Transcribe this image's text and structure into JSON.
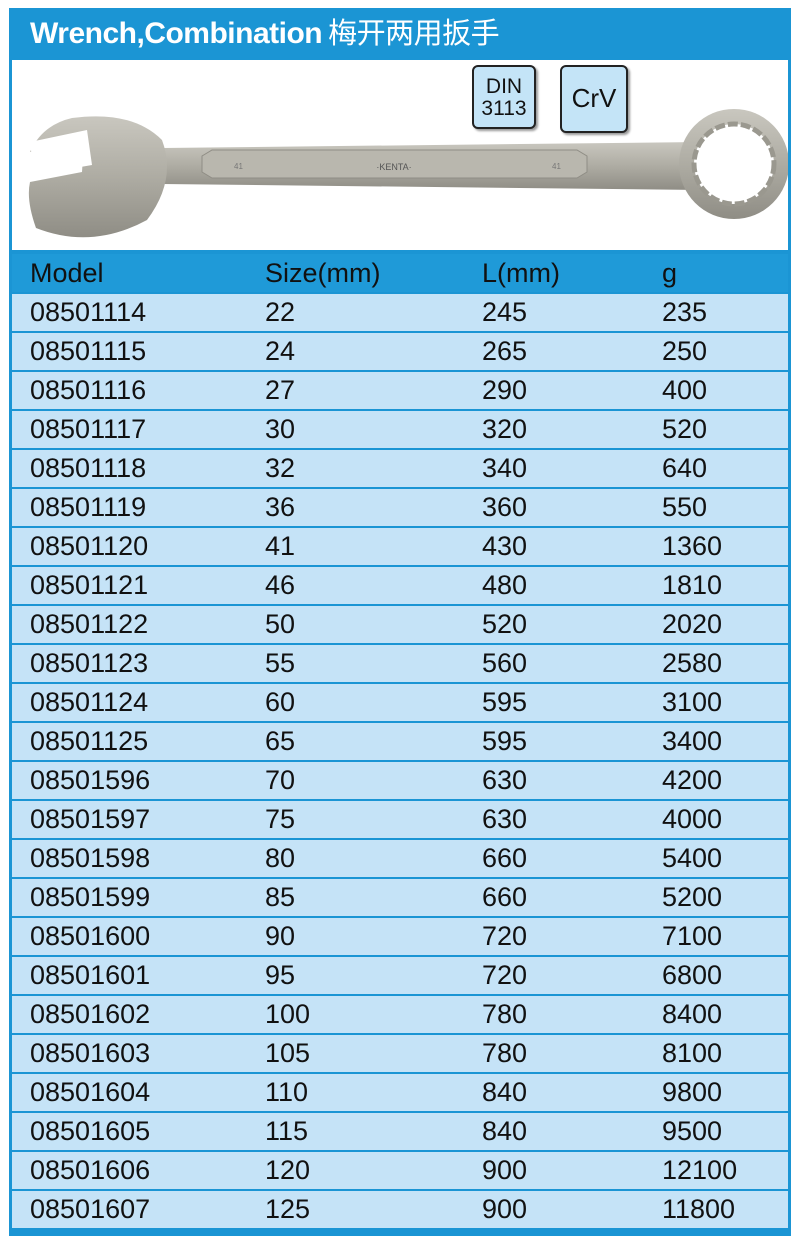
{
  "title": {
    "en": "Wrench,Combination",
    "cn": "梅开两用扳手"
  },
  "badges": {
    "din_line1": "DIN",
    "din_line2": "3113",
    "material": "CrV"
  },
  "wrench_marking": {
    "brand": "·KENTA·",
    "size_mark": "41"
  },
  "colors": {
    "frame": "#1b95d4",
    "row": "#c5e3f7",
    "badge": "#c4e4f7"
  },
  "table": {
    "headers": [
      "Model",
      "Size(mm)",
      "L(mm)",
      "g"
    ],
    "rows": [
      [
        "08501114",
        "22",
        "245",
        "235"
      ],
      [
        "08501115",
        "24",
        "265",
        "250"
      ],
      [
        "08501116",
        "27",
        "290",
        "400"
      ],
      [
        "08501117",
        "30",
        "320",
        "520"
      ],
      [
        "08501118",
        "32",
        "340",
        "640"
      ],
      [
        "08501119",
        "36",
        "360",
        "550"
      ],
      [
        "08501120",
        "41",
        "430",
        "1360"
      ],
      [
        "08501121",
        "46",
        "480",
        "1810"
      ],
      [
        "08501122",
        "50",
        "520",
        "2020"
      ],
      [
        "08501123",
        "55",
        "560",
        "2580"
      ],
      [
        "08501124",
        "60",
        "595",
        "3100"
      ],
      [
        "08501125",
        "65",
        "595",
        "3400"
      ],
      [
        "08501596",
        "70",
        "630",
        "4200"
      ],
      [
        "08501597",
        "75",
        "630",
        "4000"
      ],
      [
        "08501598",
        "80",
        "660",
        "5400"
      ],
      [
        "08501599",
        "85",
        "660",
        "5200"
      ],
      [
        "08501600",
        "90",
        "720",
        "7100"
      ],
      [
        "08501601",
        "95",
        "720",
        "6800"
      ],
      [
        "08501602",
        "100",
        "780",
        "8400"
      ],
      [
        "08501603",
        "105",
        "780",
        "8100"
      ],
      [
        "08501604",
        "110",
        "840",
        "9800"
      ],
      [
        "08501605",
        "115",
        "840",
        "9500"
      ],
      [
        "08501606",
        "120",
        "900",
        "12100"
      ],
      [
        "08501607",
        "125",
        "900",
        "11800"
      ]
    ]
  }
}
